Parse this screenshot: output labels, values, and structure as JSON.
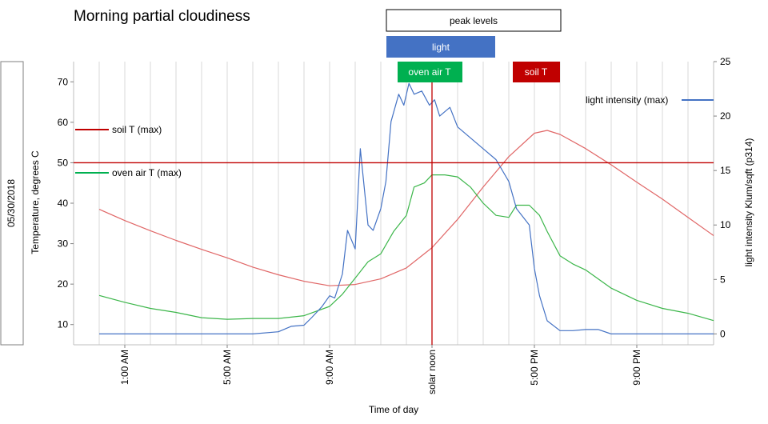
{
  "chart_data": {
    "type": "line",
    "title": "Morning partial cloudiness",
    "date_label": "05/30/2018",
    "xlabel": "Time of day",
    "ylabel_left": "Temperature, degrees C",
    "ylabel_right": "light intensity Klum/sqft (p314)",
    "x_unit": "hours",
    "xlim": [
      -1,
      24
    ],
    "ylim_left": [
      5,
      75
    ],
    "ylim_right": [
      -1,
      25
    ],
    "x_ticks": [
      {
        "x": 1,
        "label": "1:00 AM"
      },
      {
        "x": 5,
        "label": "5:00 AM"
      },
      {
        "x": 9,
        "label": "9:00 AM"
      },
      {
        "x": 13,
        "label": "solar noon"
      },
      {
        "x": 17,
        "label": "5:00 PM"
      },
      {
        "x": 21,
        "label": "9:00 PM"
      }
    ],
    "y_ticks_left": [
      10,
      20,
      30,
      40,
      50,
      60,
      70
    ],
    "y_ticks_right": [
      0,
      5,
      10,
      15,
      20,
      25
    ],
    "grid": true,
    "reference_lines": {
      "horizontal_left": 50,
      "vertical_x": 13
    },
    "peak_legend": {
      "title": "peak levels",
      "items": [
        {
          "label": "light",
          "color": "#4472c4"
        },
        {
          "label": "oven air T",
          "color": "#00b050"
        },
        {
          "label": "soil T",
          "color": "#c00000"
        }
      ]
    },
    "line_labels": [
      {
        "series": "soil_t",
        "label": "soil T (max)",
        "color": "#c00000"
      },
      {
        "series": "oven_air_t",
        "label": "oven air T (max)",
        "color": "#00b050"
      },
      {
        "series": "light",
        "label": "light intensity (max)",
        "color": "#4472c4"
      }
    ],
    "series": [
      {
        "id": "soil_t",
        "axis": "left",
        "color": "#e06666",
        "x": [
          0,
          1,
          2,
          3,
          4,
          5,
          6,
          7,
          8,
          9,
          10,
          11,
          12,
          13,
          14,
          15,
          16,
          17,
          17.5,
          18,
          19,
          20,
          21,
          22,
          23,
          24
        ],
        "y": [
          38.5,
          35.7,
          33.2,
          30.8,
          28.6,
          26.5,
          24.2,
          22.3,
          20.7,
          19.6,
          19.9,
          21.3,
          24.0,
          29.0,
          36.0,
          44.0,
          51.5,
          57.3,
          58.0,
          57.0,
          53.5,
          49.5,
          45.2,
          41.0,
          36.5,
          32.0
        ]
      },
      {
        "id": "oven_air_t",
        "axis": "left",
        "color": "#3cb64a",
        "x": [
          0,
          1,
          2,
          3,
          4,
          5,
          6,
          7,
          8,
          9,
          9.5,
          10,
          10.5,
          11,
          11.5,
          12,
          12.3,
          12.7,
          13,
          13.5,
          14,
          14.5,
          15,
          15.5,
          16,
          16.3,
          16.8,
          17.2,
          17.5,
          18,
          18.5,
          19,
          20,
          21,
          22,
          23,
          24
        ],
        "y": [
          17.2,
          15.5,
          14.0,
          13.0,
          11.7,
          11.3,
          11.5,
          11.5,
          12.2,
          14.5,
          17.5,
          21.5,
          25.5,
          27.5,
          33.0,
          37.0,
          44.0,
          45.0,
          47.0,
          47.0,
          46.5,
          44.0,
          40.0,
          37.0,
          36.5,
          39.5,
          39.5,
          37.0,
          33.0,
          27.0,
          25.0,
          23.5,
          19.0,
          16.0,
          14.0,
          12.8,
          11.0
        ]
      },
      {
        "id": "light",
        "axis": "right",
        "color": "#4472c4",
        "x": [
          0,
          2,
          4,
          6,
          7,
          7.5,
          8,
          8.3,
          8.7,
          9,
          9.2,
          9.5,
          9.7,
          10,
          10.2,
          10.5,
          10.7,
          11,
          11.2,
          11.4,
          11.7,
          11.9,
          12.1,
          12.3,
          12.6,
          12.9,
          13.1,
          13.3,
          13.7,
          14,
          14.5,
          15,
          15.5,
          16,
          16.3,
          16.8,
          17,
          17.2,
          17.5,
          18,
          18.5,
          19,
          19.5,
          20,
          21,
          22,
          23,
          24
        ],
        "y": [
          0,
          0,
          0,
          0,
          0.2,
          0.7,
          0.8,
          1.5,
          2.5,
          3.5,
          3.3,
          5.5,
          9.5,
          7.8,
          17.0,
          10.0,
          9.5,
          11.5,
          14.0,
          19.5,
          22.0,
          21.0,
          23.0,
          22.0,
          22.3,
          21.0,
          21.5,
          20.0,
          20.8,
          19.0,
          18.0,
          17.0,
          16.0,
          14.0,
          11.5,
          10.0,
          6.0,
          3.5,
          1.2,
          0.3,
          0.3,
          0.4,
          0.4,
          0,
          0,
          0,
          0,
          0
        ]
      }
    ]
  }
}
